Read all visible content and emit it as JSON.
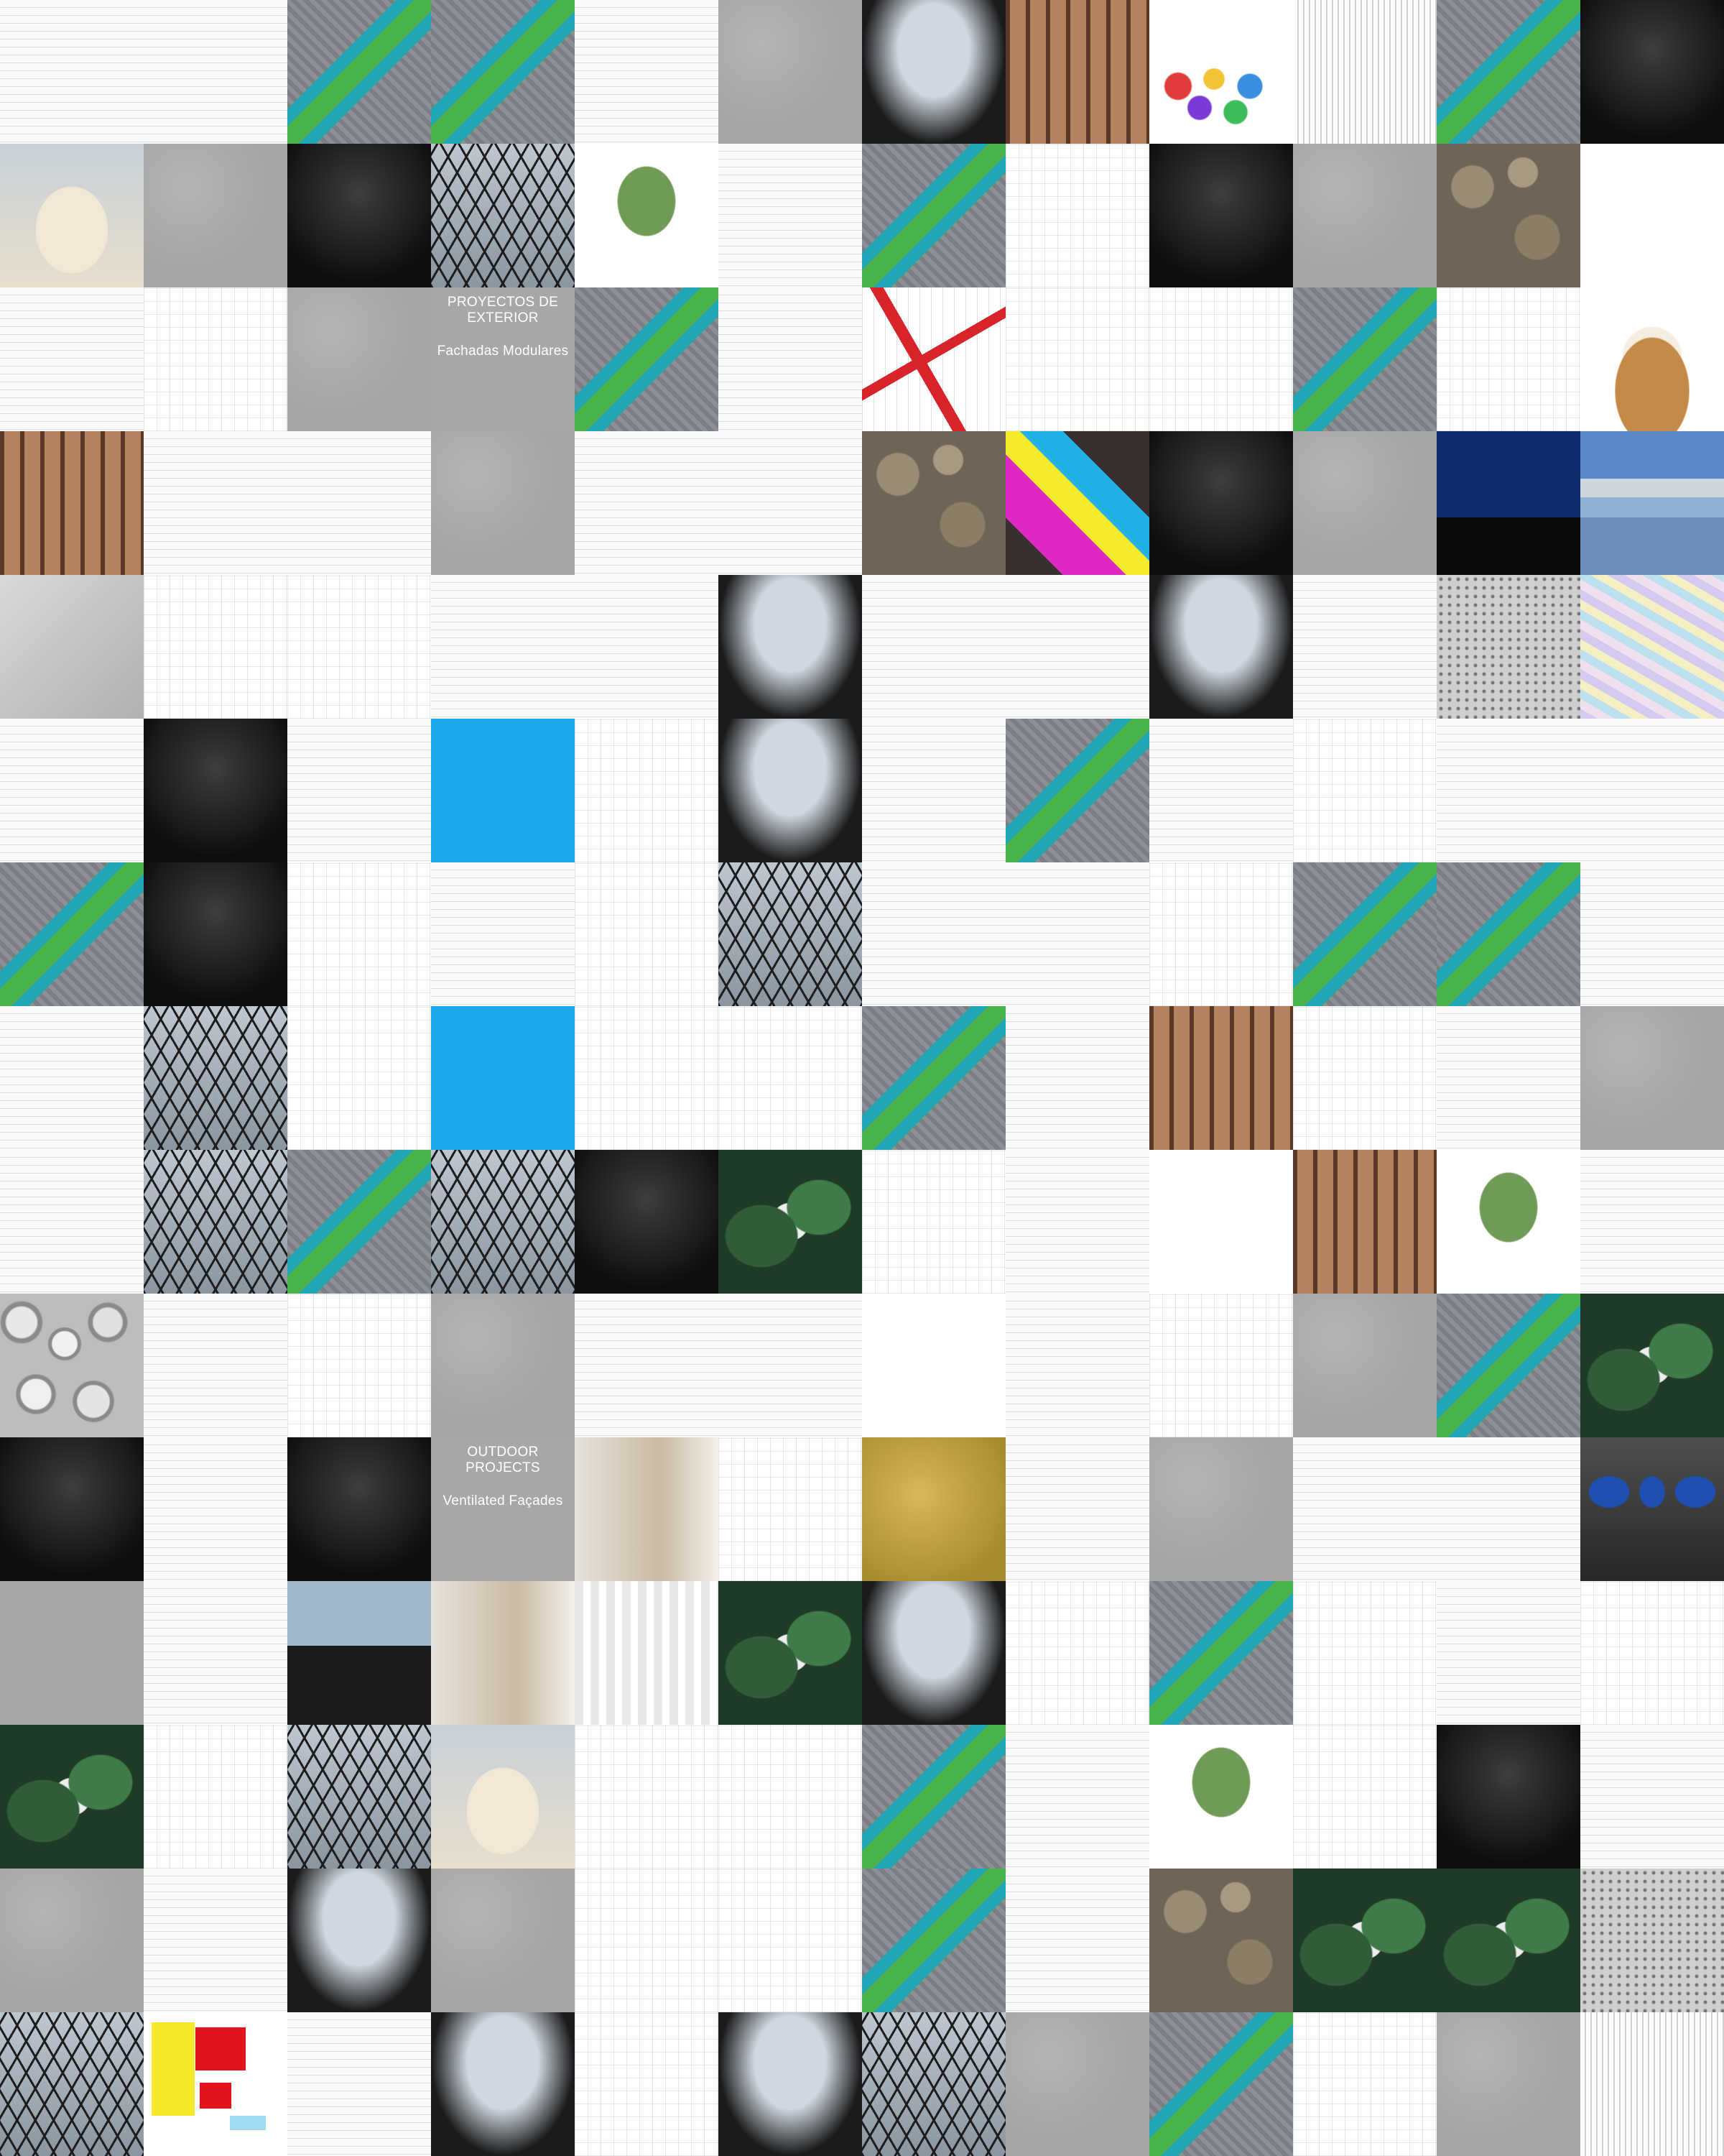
{
  "grid": {
    "columns": 12,
    "rows": 15
  },
  "captions": {
    "proyectos": {
      "title": "PROYECTOS DE EXTERIOR",
      "subtitle": "Fachadas Modulares"
    },
    "outdoor": {
      "title": "OUTDOOR PROJECTS",
      "subtitle": "Ventilated Façades"
    }
  },
  "tiles": [
    "doc",
    "doc",
    "aerial",
    "aerial",
    "doc",
    "concrete",
    "projector",
    "facade-brown",
    "color-flowers",
    "lines",
    "aerial",
    "dark",
    "sand",
    "concrete",
    "dark",
    "glass",
    "tree-sketch",
    "doc",
    "aerial",
    "blueprint",
    "dark",
    "concrete",
    "stone",
    "white",
    "doc",
    "blueprint",
    "concrete",
    "caption-proyectos",
    "aerial",
    "doc",
    "red-steel",
    "blueprint",
    "blueprint",
    "aerial",
    "blueprint",
    "coconut",
    "facade-brown",
    "doc",
    "doc",
    "concrete",
    "doc",
    "doc",
    "stone",
    "magenta-block",
    "dark",
    "concrete",
    "skyline",
    "bluebands",
    "light-floor",
    "blueprint",
    "blueprint",
    "doc",
    "doc",
    "projector",
    "doc",
    "doc",
    "projector",
    "doc",
    "perforated",
    "map-pastel",
    "doc",
    "dark",
    "doc",
    "sky-blue",
    "blueprint",
    "projector",
    "doc",
    "aerial",
    "doc",
    "blueprint",
    "doc",
    "doc",
    "aerial",
    "dark",
    "blueprint",
    "doc",
    "blueprint",
    "glass",
    "doc",
    "doc",
    "blueprint",
    "aerial",
    "aerial",
    "doc",
    "doc",
    "glass",
    "blueprint",
    "sky-blue",
    "blueprint",
    "blueprint",
    "aerial",
    "doc",
    "facade-brown",
    "blueprint",
    "doc",
    "concrete",
    "doc",
    "glass",
    "aerial",
    "glass",
    "dark",
    "green-render",
    "blueprint",
    "doc",
    "white",
    "facade-brown",
    "tree-sketch",
    "doc",
    "pebbles",
    "doc",
    "blueprint",
    "concrete",
    "doc",
    "doc",
    "white",
    "doc",
    "blueprint",
    "concrete",
    "aerial",
    "green-render",
    "dark",
    "doc",
    "dark",
    "caption-outdoor",
    "gallery",
    "blueprint",
    "gold",
    "doc",
    "concrete",
    "doc",
    "doc",
    "chairs",
    "grey-card",
    "doc",
    "car",
    "gallery",
    "arch-white",
    "green-render",
    "projector",
    "blueprint",
    "aerial",
    "blueprint",
    "doc",
    "blueprint",
    "green-render",
    "blueprint",
    "glass",
    "sand",
    "blueprint",
    "blueprint",
    "aerial",
    "doc",
    "tree-sketch",
    "blueprint",
    "dark",
    "doc",
    "concrete",
    "doc",
    "projector",
    "concrete",
    "blueprint",
    "blueprint",
    "aerial",
    "doc",
    "stone",
    "green-render",
    "green-render",
    "perforated",
    "glass",
    "colors-plan",
    "doc",
    "projector",
    "blueprint",
    "projector",
    "glass",
    "concrete",
    "aerial",
    "blueprint",
    "concrete",
    "lines"
  ]
}
